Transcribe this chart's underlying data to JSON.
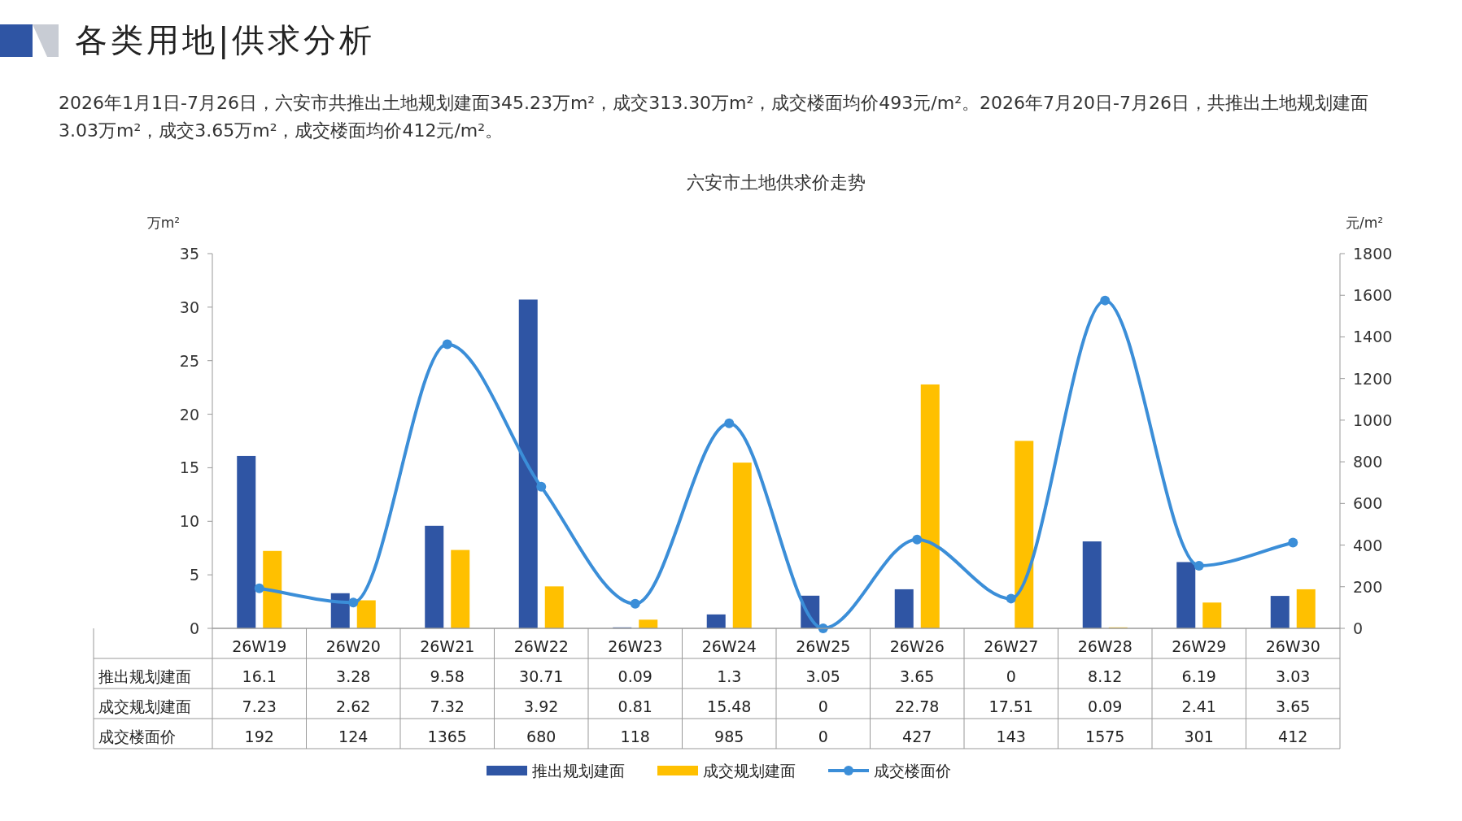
{
  "chart_data": {
    "type": "bar",
    "title": "六安市土地供求价走势",
    "annotations": [
      "各类用地|供求分析",
      "2026年1月1日-7月26日，六安市共推出土地规划建面345.23万m²，成交313.30万m²，成交楼面均价493元/m²。2026年7月20日-7月26日，共推出土地规划建面3.03万m²，成交3.65万m²，成交楼面均价412元/m²。"
    ],
    "ylabel": "万m²",
    "y2label": "元/m²",
    "categories": [
      "26W19",
      "26W20",
      "26W21",
      "26W22",
      "26W23",
      "26W24",
      "26W25",
      "26W26",
      "26W27",
      "26W28",
      "26W29",
      "26W30"
    ],
    "series": [
      {
        "name": "推出规划建面",
        "color": "#2f55a4",
        "values": [
          16.1,
          3.28,
          9.58,
          30.71,
          0.09,
          1.3,
          3.05,
          3.65,
          0,
          8.12,
          6.19,
          3.03
        ]
      },
      {
        "name": "成交规划建面",
        "color": "#ffc000",
        "values": [
          7.23,
          2.62,
          7.32,
          3.92,
          0.81,
          15.48,
          0,
          22.78,
          17.51,
          0.09,
          2.41,
          3.65
        ]
      },
      {
        "name": "成交楼面价",
        "type": "line",
        "axis": "y2",
        "color": "#3b8ed8",
        "marker": "circle",
        "values": [
          192,
          124,
          1365,
          680,
          118,
          985,
          0,
          427,
          143,
          1575,
          301,
          412
        ]
      }
    ],
    "ylim": [
      0,
      35
    ],
    "yticks": [
      0,
      5,
      10,
      15,
      20,
      25,
      30,
      35
    ],
    "y2lim": [
      0,
      1800
    ],
    "y2ticks": [
      0,
      200,
      400,
      600,
      800,
      1000,
      1200,
      1400,
      1600,
      1800
    ],
    "data_labels": true,
    "grid": false,
    "legend": "bottom"
  }
}
